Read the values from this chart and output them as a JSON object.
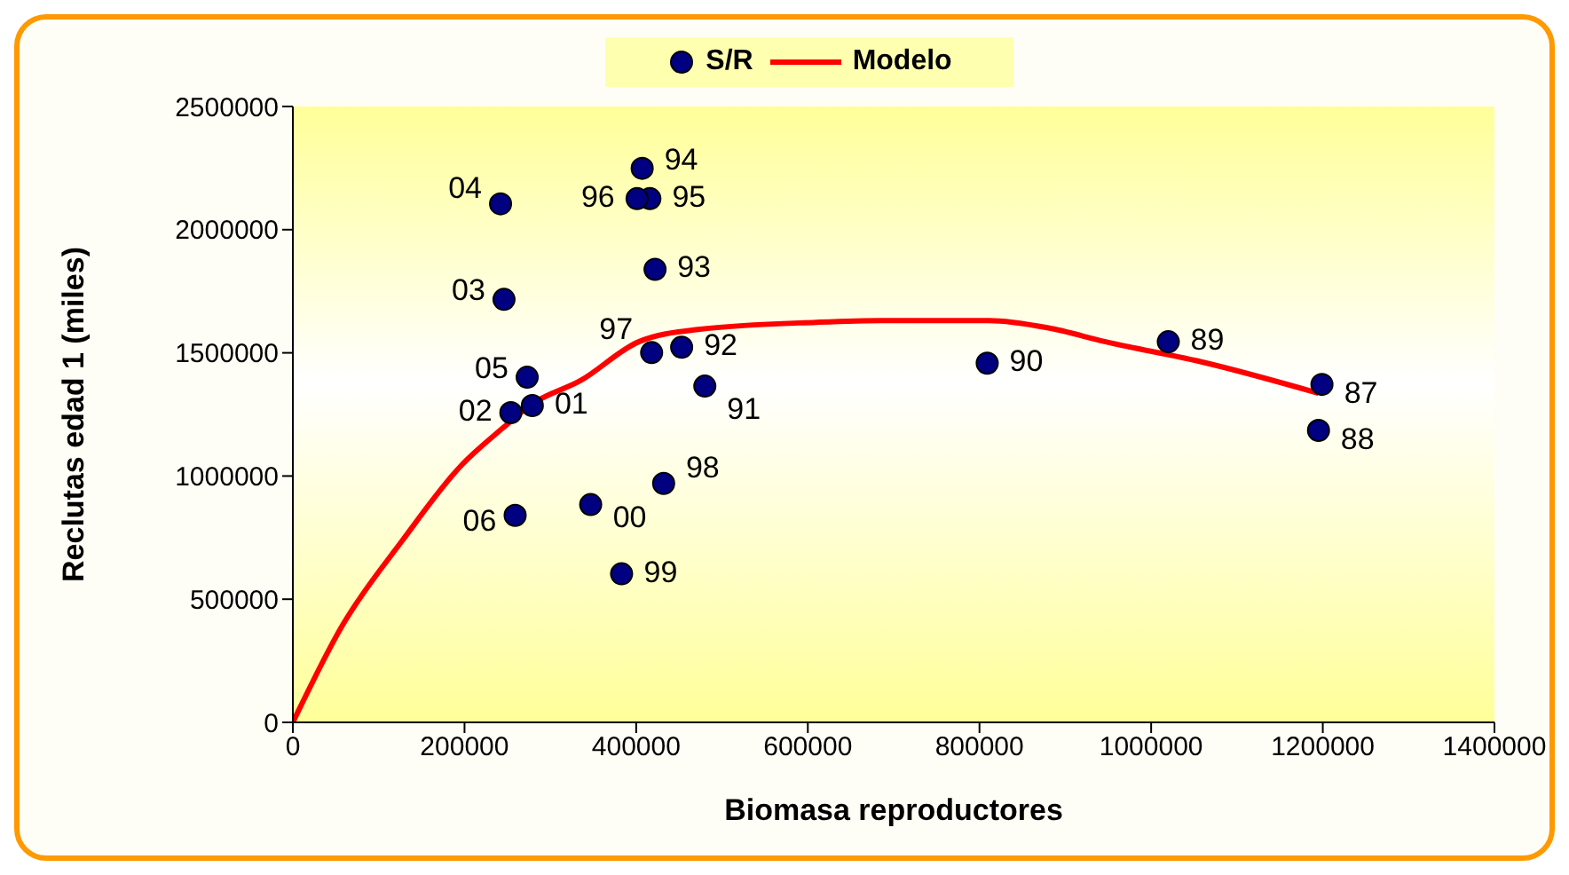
{
  "chart_data": {
    "type": "scatter",
    "xlabel": "Biomasa reproductores",
    "ylabel": "Reclutas edad 1 (miles)",
    "xlim": [
      0,
      1400000
    ],
    "xticks": [
      0,
      200000,
      400000,
      600000,
      800000,
      1000000,
      1200000,
      1400000
    ],
    "ylim": [
      0,
      2500000
    ],
    "yticks": [
      0,
      500000,
      1000000,
      1500000,
      2000000,
      2500000
    ],
    "grid": false,
    "legend": "top",
    "marker": "circle",
    "series": [
      {
        "name": "S/R",
        "color": "#000080",
        "x": [
          1199000,
          1195000,
          1020000,
          809000,
          480000,
          453000,
          422000,
          407000,
          416000,
          401000,
          418000,
          432000,
          383000,
          347000,
          279000,
          254000,
          246000,
          242000,
          273000,
          259000
        ],
        "values": [
          1372000,
          1185000,
          1545000,
          1458000,
          1365000,
          1523000,
          1839000,
          2249000,
          2126000,
          2126000,
          1501000,
          970000,
          603000,
          884000,
          1286000,
          1257000,
          1717000,
          2105000,
          1401000,
          840000
        ]
      },
      {
        "name": "Modelo",
        "type": "line",
        "color": "#ff0000",
        "line_style": "solid",
        "marker": "none",
        "x": [
          0,
          58000,
          128000,
          196000,
          244000,
          279000,
          335000,
          403000,
          472000,
          610000,
          687000,
          811000,
          879000,
          947000,
          1065000,
          1195000
        ],
        "values": [
          0,
          395000,
          740000,
          1042000,
          1193000,
          1293000,
          1387000,
          1545000,
          1595000,
          1624000,
          1631000,
          1631000,
          1602000,
          1545000,
          1458000,
          1336000
        ]
      }
    ],
    "annotations": [
      {
        "text": "87",
        "x": 1199000,
        "y": 1372000
      },
      {
        "text": "88",
        "x": 1195000,
        "y": 1185000
      },
      {
        "text": "89",
        "x": 1020000,
        "y": 1545000
      },
      {
        "text": "90",
        "x": 809000,
        "y": 1458000
      },
      {
        "text": "91",
        "x": 480000,
        "y": 1365000
      },
      {
        "text": "92",
        "x": 453000,
        "y": 1523000
      },
      {
        "text": "93",
        "x": 422000,
        "y": 1839000
      },
      {
        "text": "94",
        "x": 407000,
        "y": 2249000
      },
      {
        "text": "95",
        "x": 416000,
        "y": 2126000
      },
      {
        "text": "96",
        "x": 401000,
        "y": 2126000
      },
      {
        "text": "97",
        "x": 418000,
        "y": 1501000
      },
      {
        "text": "98",
        "x": 432000,
        "y": 970000
      },
      {
        "text": "99",
        "x": 383000,
        "y": 603000
      },
      {
        "text": "00",
        "x": 347000,
        "y": 884000
      },
      {
        "text": "01",
        "x": 279000,
        "y": 1286000
      },
      {
        "text": "02",
        "x": 254000,
        "y": 1257000
      },
      {
        "text": "03",
        "x": 246000,
        "y": 1717000
      },
      {
        "text": "04",
        "x": 242000,
        "y": 2105000
      },
      {
        "text": "05",
        "x": 273000,
        "y": 1401000
      },
      {
        "text": "06",
        "x": 259000,
        "y": 840000
      }
    ]
  }
}
